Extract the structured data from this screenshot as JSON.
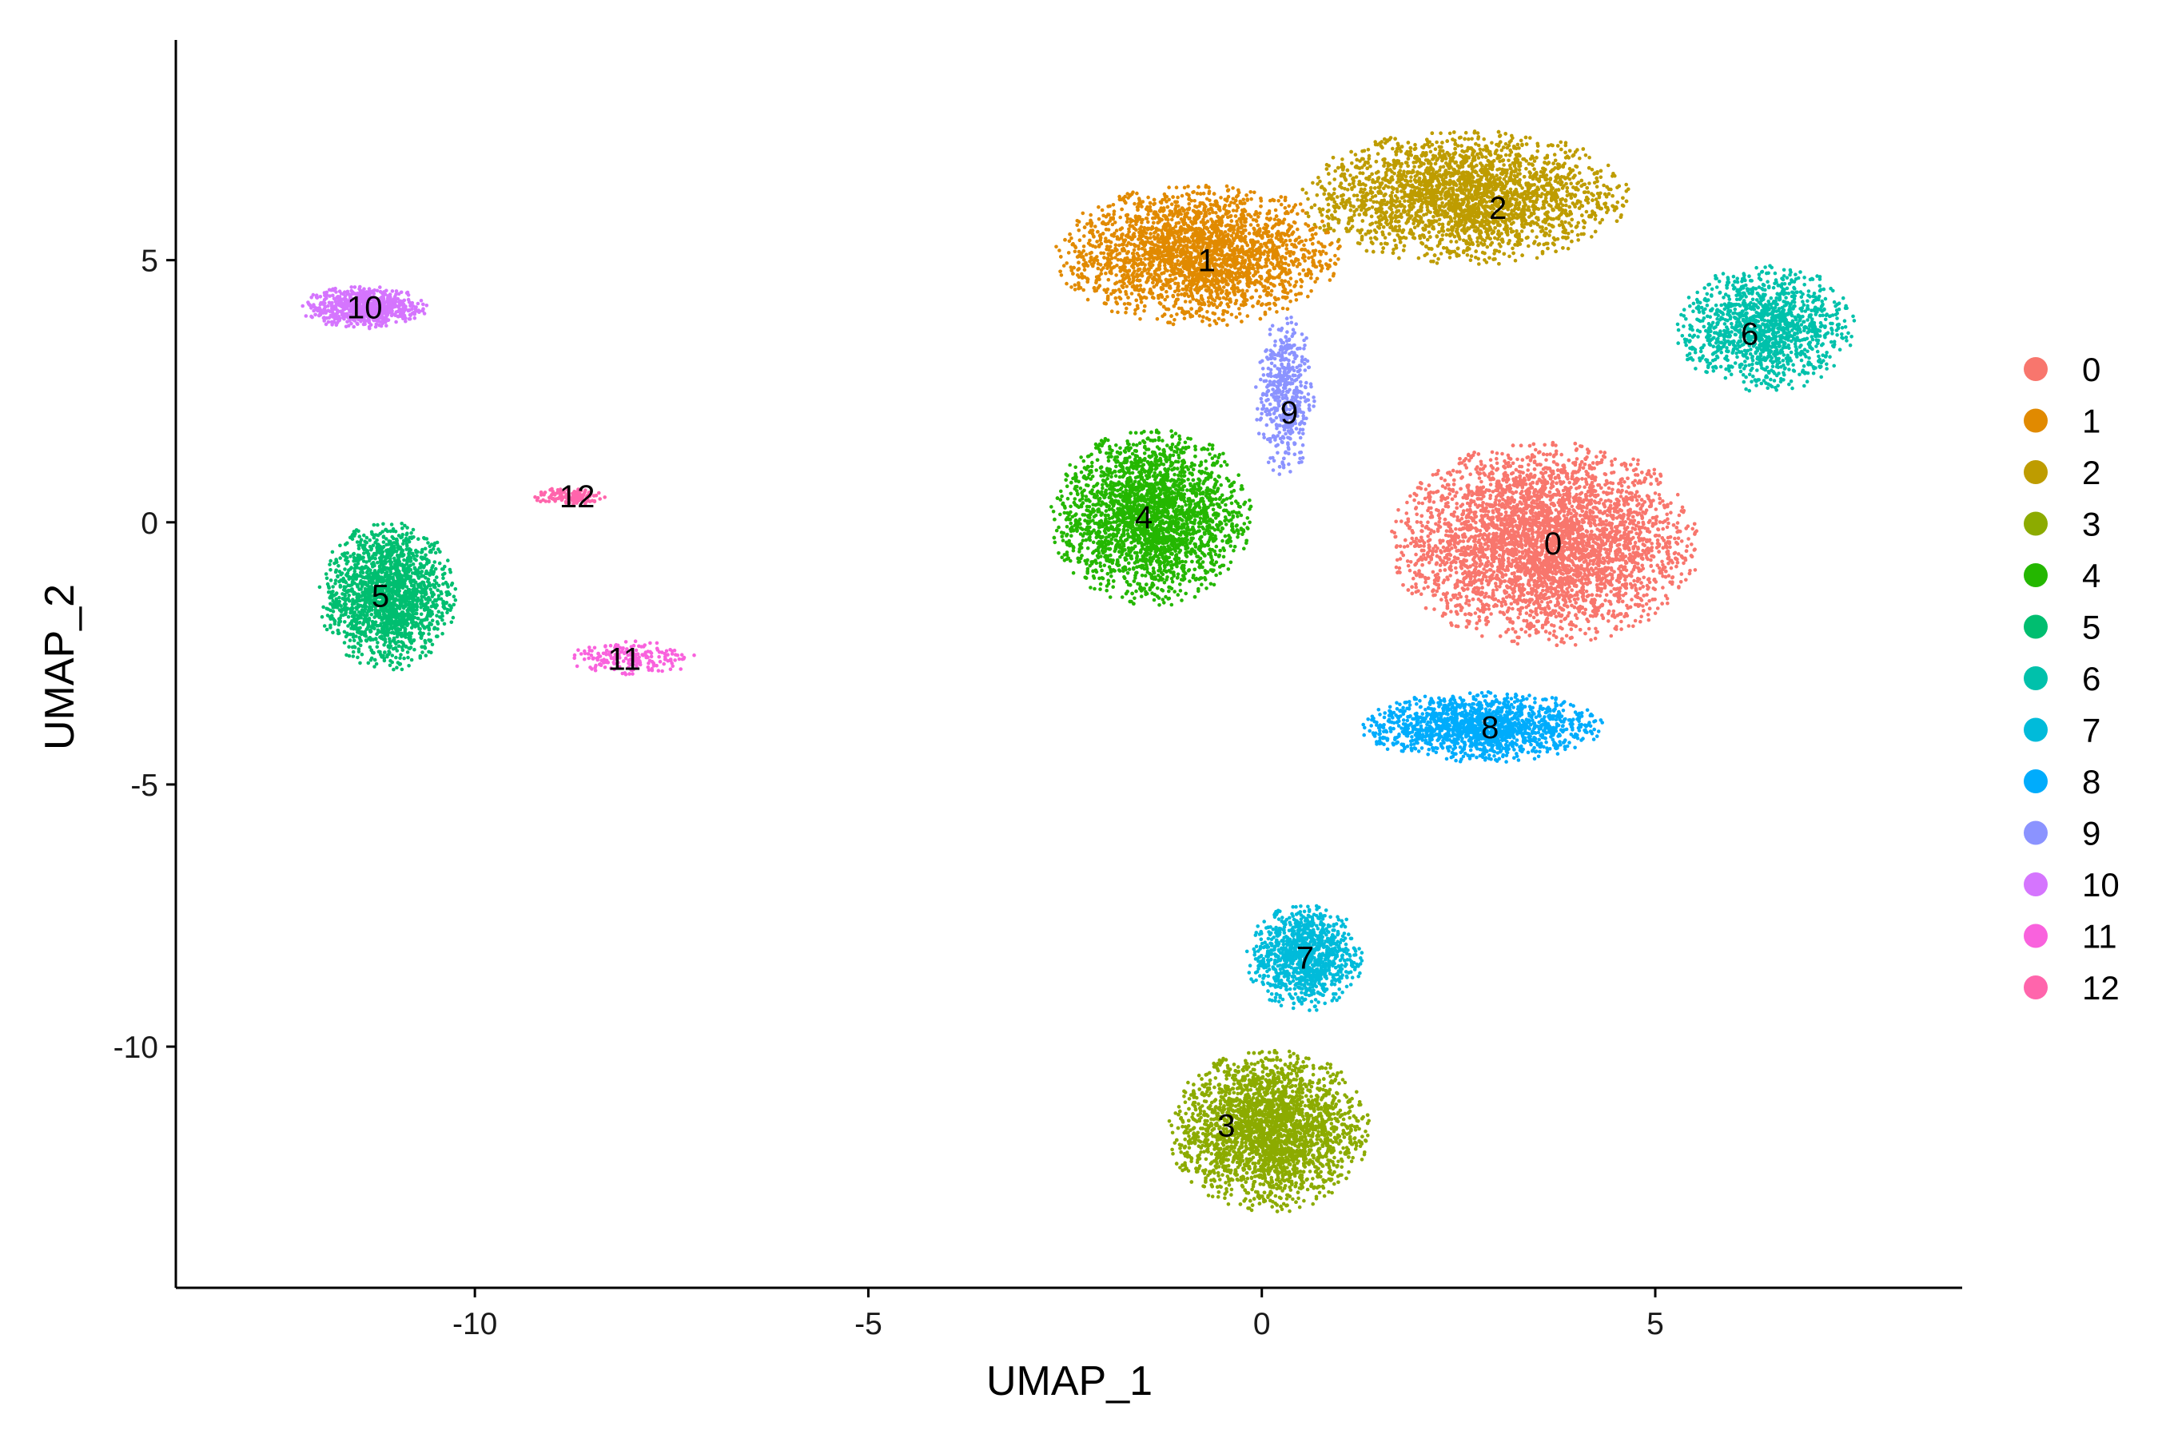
{
  "chart_data": {
    "type": "scatter",
    "title": "",
    "xlabel": "UMAP_1",
    "ylabel": "UMAP_2",
    "xlim": [
      -13.8,
      8.9
    ],
    "ylim": [
      -14.6,
      9.2
    ],
    "xticks": [
      -10,
      -5,
      0,
      5
    ],
    "yticks": [
      -10,
      -5,
      0,
      5
    ],
    "xtick_labels": [
      "-10",
      "-5",
      "0",
      "5"
    ],
    "ytick_labels": [
      "-10",
      "-5",
      "0",
      "5"
    ],
    "grid": false,
    "legend_position": "right",
    "series": [
      {
        "name": "0",
        "color": "#F8766D",
        "label_pos": [
          3.7,
          -0.4
        ],
        "center": [
          3.6,
          -0.4
        ],
        "spread": [
          1.45,
          1.45
        ],
        "n": 5200
      },
      {
        "name": "1",
        "color": "#E18A00",
        "label_pos": [
          -0.7,
          5.0
        ],
        "center": [
          -0.8,
          5.1
        ],
        "spread": [
          1.35,
          1.0
        ],
        "n": 3200
      },
      {
        "name": "2",
        "color": "#BE9C00",
        "label_pos": [
          3.0,
          6.0
        ],
        "center": [
          2.6,
          6.2
        ],
        "spread": [
          1.55,
          0.95
        ],
        "n": 3600
      },
      {
        "name": "3",
        "color": "#8CAB00",
        "label_pos": [
          -0.45,
          -11.5
        ],
        "center": [
          0.1,
          -11.6
        ],
        "spread": [
          0.95,
          1.15
        ],
        "n": 3200
      },
      {
        "name": "4",
        "color": "#24B700",
        "label_pos": [
          -1.5,
          0.1
        ],
        "center": [
          -1.4,
          0.1
        ],
        "spread": [
          0.95,
          1.25
        ],
        "n": 2800
      },
      {
        "name": "5",
        "color": "#00BE70",
        "label_pos": [
          -11.2,
          -1.4
        ],
        "center": [
          -11.1,
          -1.4
        ],
        "spread": [
          0.65,
          1.05
        ],
        "n": 1800
      },
      {
        "name": "6",
        "color": "#00C1AB",
        "label_pos": [
          6.2,
          3.6
        ],
        "center": [
          6.4,
          3.7
        ],
        "spread": [
          0.85,
          0.9
        ],
        "n": 1300
      },
      {
        "name": "7",
        "color": "#00BBDA",
        "label_pos": [
          0.55,
          -8.3
        ],
        "center": [
          0.55,
          -8.3
        ],
        "spread": [
          0.55,
          0.75
        ],
        "n": 1100
      },
      {
        "name": "8",
        "color": "#00ACFC",
        "label_pos": [
          2.9,
          -3.9
        ],
        "center": [
          2.8,
          -3.9
        ],
        "spread": [
          1.15,
          0.5
        ],
        "n": 1500
      },
      {
        "name": "9",
        "color": "#8B93FF",
        "label_pos": [
          0.35,
          2.1
        ],
        "center": [
          0.3,
          2.4
        ],
        "spread": [
          0.28,
          1.15
        ],
        "n": 500
      },
      {
        "name": "10",
        "color": "#D575FE",
        "label_pos": [
          -11.4,
          4.1
        ],
        "center": [
          -11.4,
          4.1
        ],
        "spread": [
          0.6,
          0.3
        ],
        "n": 700
      },
      {
        "name": "11",
        "color": "#F962DD",
        "label_pos": [
          -8.1,
          -2.6
        ],
        "center": [
          -8.0,
          -2.6
        ],
        "spread": [
          0.6,
          0.25
        ],
        "n": 200
      },
      {
        "name": "12",
        "color": "#FF65AC",
        "label_pos": [
          -8.7,
          0.5
        ],
        "center": [
          -8.8,
          0.5
        ],
        "spread": [
          0.35,
          0.12
        ],
        "n": 150
      }
    ]
  }
}
